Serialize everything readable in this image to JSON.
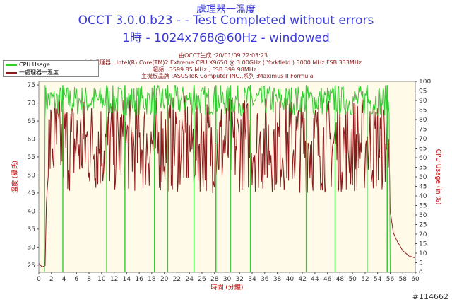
{
  "header": {
    "line1": "處理器一溫度",
    "line2": "OCCT 3.0.0.b23 -  - Test Completed without errors",
    "line3": "1時 - 1024x768@60Hz - windowed"
  },
  "info": {
    "generated": "由OCCT生成 :20/01/09 22:03:23",
    "cpu": "中央處理器 : Intel(R) Core(TM)2 Extreme CPU X9650 @ 3.00GHz ( Yorkfield ) 3000 MHz FSB 333MHz",
    "clock": "超頻 : 3599.85 MHz ; FSB 399.98MHz",
    "board": "主機板品牌 :ASUSTeK Computer INC.,系列 :Maximus II Formula"
  },
  "watermark": "#114662",
  "colors": {
    "cpu_usage": "#33cc33",
    "temperature": "#8b1a1a",
    "plot_bg": "#fffbe8",
    "title": "#3a3ad8",
    "axis_title": "#c00000"
  },
  "chart_data": {
    "type": "line",
    "xlabel": "時間 (分鐘)",
    "ylabel_left": "溫度 (攝氏)",
    "ylabel_right": "CPU Usage (in %)",
    "xlim": [
      0,
      60
    ],
    "ylim_left": [
      23,
      76
    ],
    "ylim_right": [
      0,
      100
    ],
    "x_ticks": [
      0,
      2,
      4,
      6,
      8,
      10,
      12,
      14,
      16,
      18,
      20,
      22,
      24,
      26,
      28,
      30,
      32,
      34,
      36,
      38,
      40,
      42,
      44,
      46,
      48,
      50,
      52,
      54,
      56,
      58,
      60
    ],
    "y_ticks_left": [
      25,
      30,
      35,
      40,
      45,
      50,
      55,
      60,
      65,
      70,
      75
    ],
    "y_ticks_right": [
      0,
      5,
      10,
      15,
      20,
      25,
      30,
      35,
      40,
      45,
      50,
      55,
      60,
      65,
      70,
      75,
      80,
      85,
      90,
      95,
      100
    ],
    "grid": false,
    "legend_position": "top-left",
    "series": [
      {
        "name": "CPU Usage",
        "axis": "right",
        "note_pattern": "oscillating 85-100 % between 1 and 56 min, with brief drops to 0 %",
        "drops_to_zero_at": [
          3.8,
          10.8,
          13.7,
          18.4,
          20.5,
          24.7,
          28.2,
          30.5,
          33.7,
          42.6,
          47.2,
          52.3,
          55.5
        ],
        "high_level": 98,
        "low_level": 82,
        "idle_level": 0
      },
      {
        "name": "一處理器一溫度",
        "axis": "left",
        "points": [
          [
            0,
            25.5
          ],
          [
            0.5,
            24.5
          ],
          [
            1,
            24.8
          ],
          [
            1.2,
            42
          ],
          [
            1.5,
            50
          ],
          [
            2,
            58
          ],
          [
            3,
            62
          ],
          [
            4,
            63
          ],
          [
            6,
            64
          ],
          [
            10,
            64
          ],
          [
            20,
            64
          ],
          [
            30,
            64
          ],
          [
            40,
            64
          ],
          [
            50,
            64
          ],
          [
            55,
            64
          ],
          [
            55.8,
            60
          ],
          [
            56,
            40
          ],
          [
            56.5,
            34
          ],
          [
            57,
            32
          ],
          [
            58,
            29
          ],
          [
            59,
            27.5
          ],
          [
            60,
            27
          ]
        ],
        "noise_range": [
          45,
          72
        ]
      }
    ]
  }
}
